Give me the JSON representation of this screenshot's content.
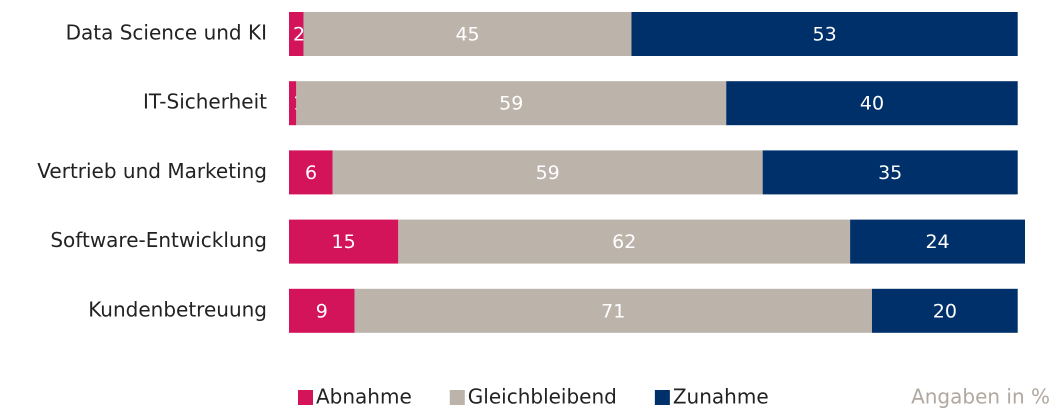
{
  "chart_data": {
    "type": "stacked-bar-horizontal",
    "categories": [
      "Data Science und KI",
      "IT-Sicherheit",
      "Vertrieb und Marketing",
      "Software-Entwicklung",
      "Kundenbetreuung"
    ],
    "series": [
      {
        "name": "Abnahme",
        "color": "#d4145a",
        "values": [
          2,
          1,
          6,
          15,
          9
        ]
      },
      {
        "name": "Gleichbleibend",
        "color": "#bcb3ab",
        "values": [
          45,
          59,
          59,
          62,
          71
        ]
      },
      {
        "name": "Zunahme",
        "color": "#00306a",
        "values": [
          53,
          40,
          35,
          24,
          20
        ]
      }
    ],
    "annotation": "Angaben in %",
    "legend": "bottom"
  }
}
